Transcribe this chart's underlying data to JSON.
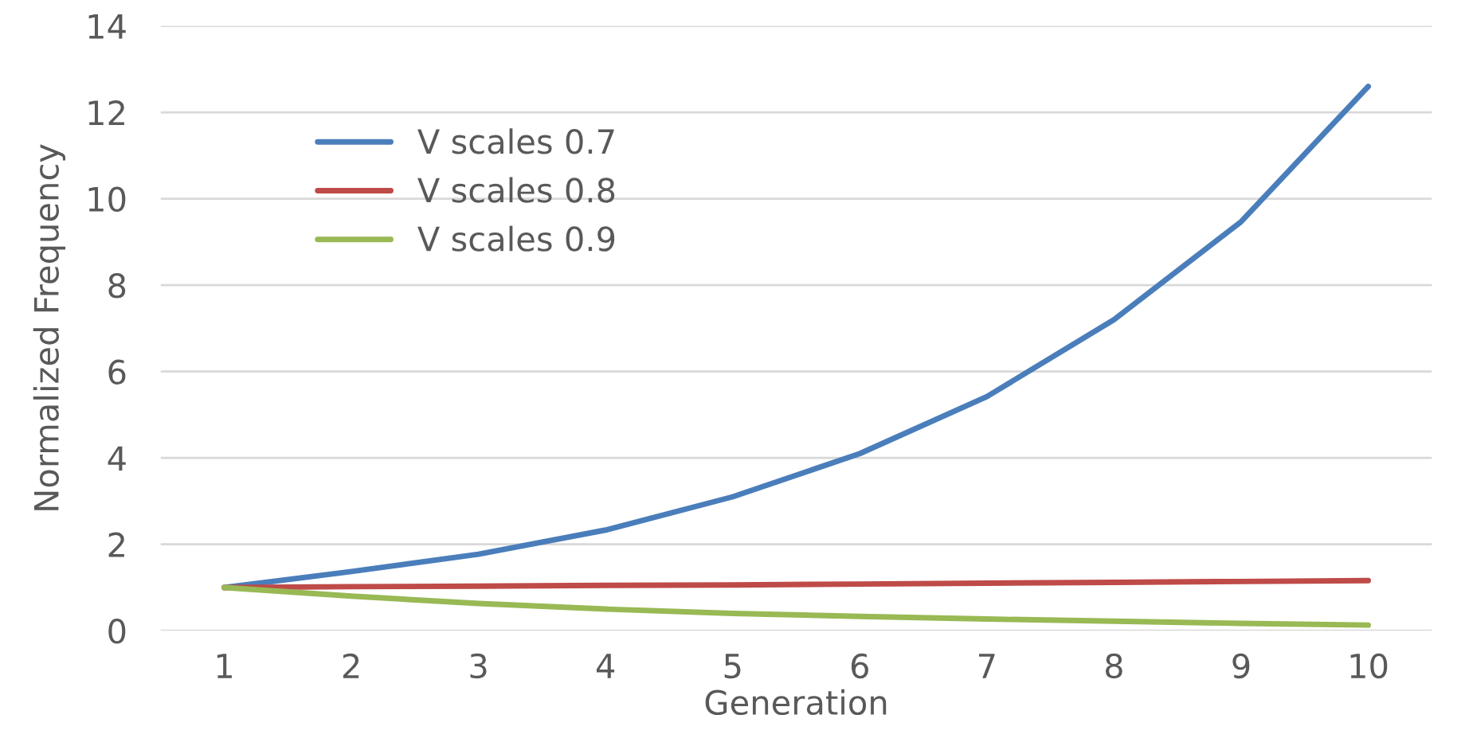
{
  "chart_data": {
    "type": "line",
    "xlabel": "Generation",
    "ylabel": "Normalized Frequency",
    "categories": [
      "1",
      "2",
      "3",
      "4",
      "5",
      "6",
      "7",
      "8",
      "9",
      "10"
    ],
    "series": [
      {
        "name": "V scales 0.7",
        "color": "#4a7ebb",
        "values": [
          1.0,
          1.37,
          1.77,
          2.33,
          3.1,
          4.1,
          5.42,
          7.2,
          9.47,
          12.6
        ]
      },
      {
        "name": "V scales 0.8",
        "color": "#be4b48",
        "values": [
          1.0,
          1.02,
          1.03,
          1.05,
          1.06,
          1.08,
          1.1,
          1.12,
          1.14,
          1.16
        ]
      },
      {
        "name": "V scales 0.9",
        "color": "#98b954",
        "values": [
          1.0,
          0.8,
          0.63,
          0.5,
          0.4,
          0.33,
          0.27,
          0.22,
          0.17,
          0.13
        ]
      }
    ],
    "ylim": [
      0,
      14
    ],
    "yticks": [
      0,
      2,
      4,
      6,
      8,
      10,
      12,
      14
    ],
    "grid": "y",
    "legend": "top left",
    "marker": "none",
    "line_style": "solid"
  }
}
